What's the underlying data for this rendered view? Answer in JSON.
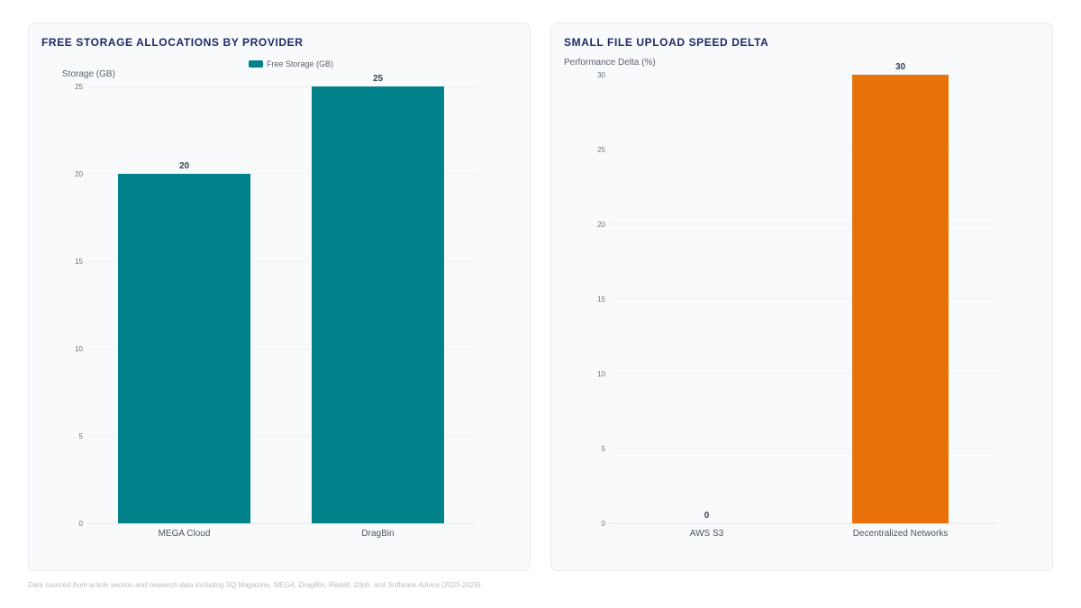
{
  "charts": [
    {
      "panel_title": "FREE STORAGE ALLOCATIONS BY PROVIDER",
      "legend_label": "Free Storage (GB)"
    },
    {
      "panel_title": "SMALL FILE UPLOAD SPEED DELTA",
      "legend_label": ""
    }
  ],
  "footnote": "Data sourced from article section and research data including SQ Magazine, MEGA, DragBin, Reddit, 10pb, and Software Advice (2025-2026).",
  "colors": {
    "teal": "#00828a",
    "orange": "#e8710a",
    "title": "#1f2a66"
  },
  "chart_data": [
    {
      "type": "bar",
      "title": "FREE STORAGE ALLOCATIONS BY PROVIDER",
      "categories": [
        "MEGA Cloud",
        "DragBin"
      ],
      "series": [
        {
          "name": "Free Storage (GB)",
          "values": [
            20,
            25
          ]
        }
      ],
      "ylabel": "Storage (GB)",
      "xlabel": "",
      "ylim": [
        0,
        25
      ],
      "yticks": [
        0,
        5,
        10,
        15,
        20,
        25
      ],
      "grid": true,
      "legend": "top-center",
      "data_labels": true,
      "colors": [
        "#00828a",
        "#00828a"
      ]
    },
    {
      "type": "bar",
      "title": "SMALL FILE UPLOAD SPEED DELTA",
      "categories": [
        "AWS S3",
        "Decentralized Networks"
      ],
      "series": [
        {
          "values": [
            0,
            30
          ]
        }
      ],
      "ylabel": "Performance Delta (%)",
      "xlabel": "",
      "ylim": [
        0,
        30
      ],
      "yticks": [
        0,
        5,
        10,
        15,
        20,
        25,
        30
      ],
      "grid": true,
      "legend": "none",
      "data_labels": true,
      "colors": [
        "#e8710a",
        "#e8710a"
      ]
    }
  ]
}
